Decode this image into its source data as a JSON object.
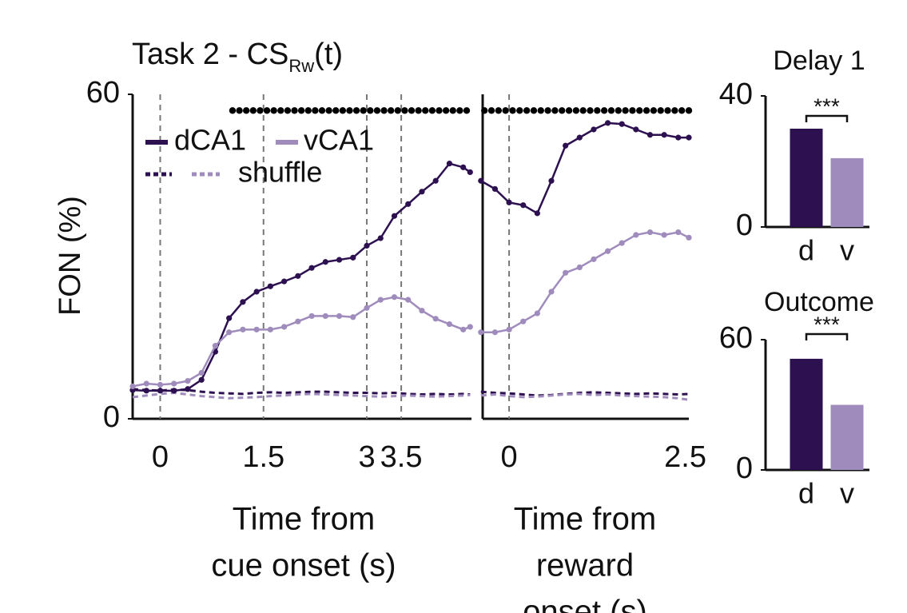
{
  "chart_data": [
    {
      "type": "line",
      "title": "Task 2 - CS",
      "title_subscript": "Rw",
      "title_suffix": "(t)",
      "ylabel": "FON (%)",
      "xlabel": [
        "Time from",
        "cue onset (s)"
      ],
      "xlim": [
        -0.4,
        4.52
      ],
      "ylim": [
        0,
        60
      ],
      "yticks": [
        0,
        60
      ],
      "xticks": [
        0,
        1.5,
        3,
        3.5
      ],
      "event_lines": [
        0,
        1.5,
        3,
        3.5
      ],
      "shuffle_label": "shuffle",
      "x": [
        -0.4,
        -0.2,
        0,
        0.2,
        0.4,
        0.6,
        0.8,
        1.0,
        1.2,
        1.4,
        1.6,
        1.8,
        2.0,
        2.2,
        2.4,
        2.6,
        2.8,
        3.0,
        3.2,
        3.4,
        3.6,
        3.8,
        4.0,
        4.2,
        4.4,
        4.5
      ],
      "series": [
        {
          "name": "dCA1",
          "color": "#2d1050",
          "style": "solid",
          "values": [
            5.3,
            5.2,
            5.2,
            5.2,
            5.5,
            7.2,
            12.4,
            18.6,
            21.6,
            23.5,
            24.5,
            25.4,
            26.4,
            27.9,
            29,
            29.4,
            29.8,
            32,
            33.4,
            37.5,
            39.7,
            42,
            44,
            47.2,
            46.5,
            45.6
          ]
        },
        {
          "name": "vCA1",
          "color": "#a08cbc",
          "style": "solid",
          "values": [
            6,
            6.5,
            6.3,
            6.5,
            7,
            8.5,
            13.5,
            16,
            16.5,
            16.5,
            16.5,
            17,
            18,
            19,
            19,
            19,
            18.8,
            20.5,
            22,
            22.5,
            22,
            20,
            18.5,
            17.5,
            16.5,
            17
          ]
        },
        {
          "color": "#2d1050",
          "style": "dashed",
          "values": [
            5.5,
            5.3,
            5.2,
            5.4,
            5.3,
            5,
            4.8,
            4.7,
            4.6,
            4.8,
            4.9,
            4.8,
            4.9,
            5,
            5,
            4.9,
            4.8,
            4.8,
            4.7,
            4.8,
            4.6,
            4.5,
            4.6,
            4.5,
            4.6,
            4.5
          ]
        },
        {
          "color": "#a08cbc",
          "style": "dashed",
          "values": [
            4,
            4.3,
            4.6,
            4.8,
            4.5,
            4.2,
            4,
            3.8,
            3.9,
            4,
            4.2,
            4.3,
            4.5,
            4.6,
            4.5,
            4.4,
            4.3,
            4.2,
            4.1,
            4.2,
            4.3,
            4.2,
            4.1,
            4.2,
            4.3,
            4.4
          ]
        }
      ],
      "significance": {
        "y": 57,
        "color": "#000000",
        "x": [
          1.05,
          1.15,
          1.25,
          1.35,
          1.45,
          1.55,
          1.65,
          1.75,
          1.85,
          1.95,
          2.05,
          2.15,
          2.25,
          2.35,
          2.45,
          2.55,
          2.65,
          2.75,
          2.85,
          2.95,
          3.05,
          3.15,
          3.25,
          3.35,
          3.45,
          3.55,
          3.65,
          3.75,
          3.85,
          3.95,
          4.05,
          4.15,
          4.25,
          4.35,
          4.45
        ]
      }
    },
    {
      "type": "line",
      "xlabel": [
        "Time from",
        "reward",
        "onset (s)"
      ],
      "xlim": [
        -0.375,
        2.55
      ],
      "ylim": [
        0,
        60
      ],
      "xticks": [
        0,
        2.5
      ],
      "event_lines": [
        0
      ],
      "x": [
        -0.4,
        -0.2,
        0,
        0.2,
        0.4,
        0.6,
        0.8,
        1.0,
        1.2,
        1.4,
        1.6,
        1.8,
        2.0,
        2.2,
        2.4,
        2.55
      ],
      "series": [
        {
          "color": "#2d1050",
          "style": "solid",
          "values": [
            44,
            42.5,
            40,
            39.5,
            38,
            44,
            50.5,
            52,
            53.5,
            54.7,
            54.5,
            53.5,
            52.5,
            52.5,
            52,
            52
          ]
        },
        {
          "color": "#a08cbc",
          "style": "solid",
          "values": [
            16,
            16,
            16.5,
            18,
            19.5,
            23.5,
            27,
            28,
            29.5,
            31,
            32.5,
            34,
            34.5,
            34,
            34.5,
            33.5
          ]
        },
        {
          "color": "#2d1050",
          "style": "dashed",
          "values": [
            5,
            4.8,
            4.7,
            4.5,
            4.3,
            4.4,
            4.6,
            4.8,
            4.9,
            4.8,
            4.7,
            4.6,
            4.7,
            4.6,
            4.5,
            4.6
          ]
        },
        {
          "color": "#a08cbc",
          "style": "dashed",
          "values": [
            4.3,
            4.5,
            4.2,
            4,
            4.1,
            4.3,
            4.5,
            4.6,
            4.4,
            4.5,
            4.3,
            4.2,
            4.1,
            4,
            3.8,
            3.5
          ]
        }
      ],
      "significance": {
        "y": 57,
        "color": "#000000",
        "x": [
          -0.35,
          -0.25,
          -0.15,
          -0.05,
          0.05,
          0.15,
          0.25,
          0.35,
          0.45,
          0.55,
          0.65,
          0.75,
          0.85,
          0.95,
          1.05,
          1.15,
          1.25,
          1.35,
          1.45,
          1.55,
          1.65,
          1.75,
          1.85,
          1.95,
          2.05,
          2.15,
          2.25,
          2.35,
          2.45,
          2.55
        ]
      }
    },
    {
      "type": "bar",
      "title": "Delay 1",
      "categories": [
        "d",
        "v"
      ],
      "values": [
        30,
        21
      ],
      "colors": [
        "#2d1050",
        "#a08cbc"
      ],
      "ylim": [
        0,
        40
      ],
      "yticks": [
        0,
        40
      ],
      "annotation": "***"
    },
    {
      "type": "bar",
      "title": "Outcome",
      "categories": [
        "d",
        "v"
      ],
      "values": [
        51.2,
        30
      ],
      "colors": [
        "#2d1050",
        "#a08cbc"
      ],
      "ylim": [
        0,
        60
      ],
      "yticks": [
        0,
        60
      ],
      "annotation": "***"
    }
  ]
}
